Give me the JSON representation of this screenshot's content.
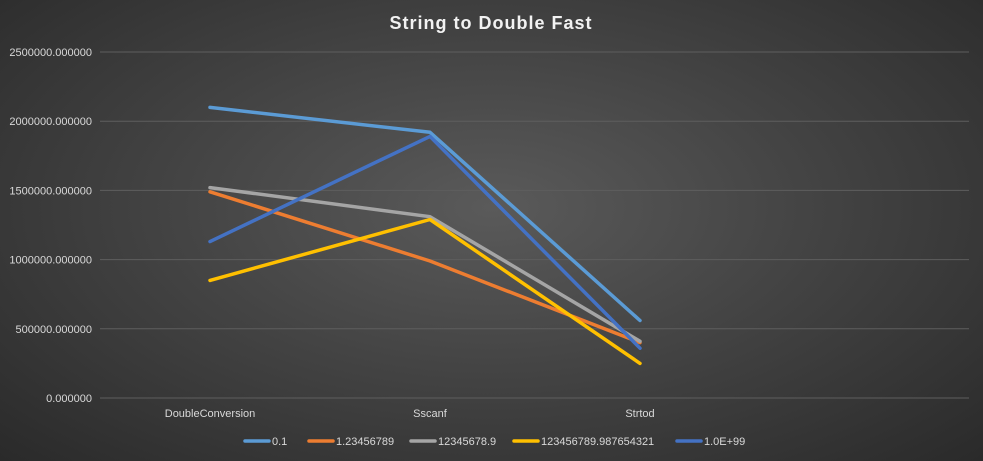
{
  "chart_data": {
    "type": "line",
    "title": "String to Double Fast",
    "categories": [
      "DoubleConversion",
      "Sscanf",
      "Strtod"
    ],
    "ylim": [
      0,
      2500000
    ],
    "yticks": [
      {
        "value": 0,
        "label": "0.000000"
      },
      {
        "value": 500000,
        "label": "500000.000000"
      },
      {
        "value": 1000000,
        "label": "1000000.000000"
      },
      {
        "value": 1500000,
        "label": "1500000.000000"
      },
      {
        "value": 2000000,
        "label": "2000000.000000"
      },
      {
        "value": 2500000,
        "label": "2500000.000000"
      }
    ],
    "grid": true,
    "legend_position": "bottom",
    "series": [
      {
        "name": "0.1",
        "color": "#5b9bd5",
        "values": [
          2100000,
          1920000,
          560000
        ]
      },
      {
        "name": "1.23456789",
        "color": "#ed7d31",
        "values": [
          1490000,
          990000,
          400000
        ]
      },
      {
        "name": "12345678.9",
        "color": "#a5a5a5",
        "values": [
          1520000,
          1310000,
          410000
        ]
      },
      {
        "name": "123456789.987654321",
        "color": "#ffc000",
        "values": [
          850000,
          1290000,
          250000
        ]
      },
      {
        "name": "1.0E+99",
        "color": "#4472c4",
        "values": [
          1130000,
          1890000,
          360000
        ]
      }
    ]
  }
}
